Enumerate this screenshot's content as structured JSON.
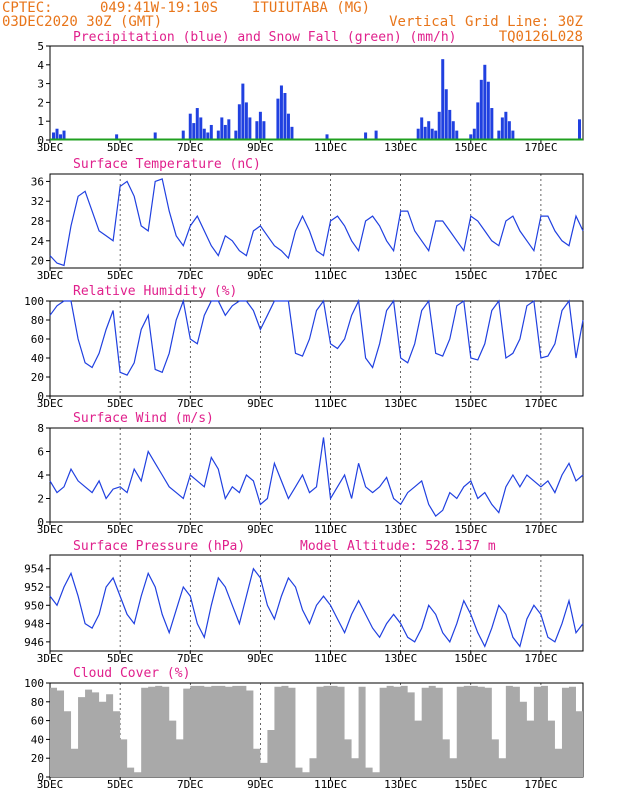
{
  "header": {
    "source": "CPTEC:",
    "coords": "049:41W-19:10S",
    "station": "ITUIUTABA (MG)",
    "init": "03DEC2020 30Z (GMT)",
    "grid_note": "Vertical Grid Line: 30Z",
    "code": "TQ0126L028"
  },
  "colors": {
    "header": "#e8751a",
    "title": "#e0208c",
    "line": "#2040e0",
    "snow": "#20a020",
    "cloud": "#a9a9a9"
  },
  "x_axis": {
    "ticks": [
      "3DEC",
      "5DEC",
      "7DEC",
      "9DEC",
      "11DEC",
      "13DEC",
      "15DEC",
      "17DEC"
    ],
    "tick_days": [
      0,
      2,
      4,
      6,
      8,
      10,
      12,
      14
    ],
    "range_days": [
      0,
      15.2
    ]
  },
  "chart_data": [
    {
      "id": "precip",
      "type": "bar",
      "title": "Precipitation (blue) and Snow Fall (green) (mm/h)",
      "ylim": [
        0,
        5
      ],
      "yticks": [
        "0",
        "1",
        "2",
        "3",
        "4",
        "5"
      ],
      "series": [
        {
          "name": "Precipitation",
          "x": [
            0.1,
            0.2,
            0.3,
            0.4,
            1.9,
            3.0,
            3.8,
            4.0,
            4.1,
            4.2,
            4.3,
            4.4,
            4.5,
            4.6,
            4.8,
            4.9,
            5.0,
            5.1,
            5.3,
            5.4,
            5.5,
            5.6,
            5.7,
            5.9,
            6.0,
            6.1,
            6.5,
            6.6,
            6.7,
            6.8,
            6.9,
            7.9,
            9.0,
            9.3,
            10.5,
            10.6,
            10.7,
            10.8,
            10.9,
            11.0,
            11.1,
            11.2,
            11.3,
            11.4,
            11.5,
            11.6,
            12.0,
            12.1,
            12.2,
            12.3,
            12.4,
            12.5,
            12.6,
            12.8,
            12.9,
            13.0,
            13.1,
            13.2,
            15.1
          ],
          "values": [
            0.4,
            0.6,
            0.3,
            0.5,
            0.3,
            0.4,
            0.5,
            1.4,
            0.9,
            1.7,
            1.2,
            0.6,
            0.4,
            0.8,
            0.5,
            1.2,
            0.8,
            1.1,
            0.5,
            1.9,
            3.0,
            2.0,
            1.2,
            1.0,
            1.5,
            1.0,
            2.2,
            2.9,
            2.5,
            1.4,
            0.7,
            0.3,
            0.4,
            0.5,
            0.6,
            1.2,
            0.7,
            1.0,
            0.6,
            0.5,
            1.5,
            4.3,
            2.7,
            1.6,
            1.0,
            0.5,
            0.3,
            0.6,
            2.0,
            3.2,
            4.0,
            3.1,
            1.7,
            0.5,
            1.2,
            1.5,
            1.0,
            0.5,
            1.1
          ]
        },
        {
          "name": "Snow Fall",
          "x": [
            0,
            15.2
          ],
          "values": [
            0,
            0
          ]
        }
      ]
    },
    {
      "id": "temp",
      "type": "line",
      "title": "Surface Temperature (nC)",
      "ylim": [
        18.5,
        37.5
      ],
      "yticks": [
        "20",
        "24",
        "28",
        "32",
        "36"
      ],
      "ytick_vals": [
        20,
        24,
        28,
        32,
        36
      ],
      "x": [
        0,
        0.2,
        0.4,
        0.6,
        0.8,
        1.0,
        1.2,
        1.4,
        1.6,
        1.8,
        2.0,
        2.2,
        2.4,
        2.6,
        2.8,
        3.0,
        3.2,
        3.4,
        3.6,
        3.8,
        4.0,
        4.2,
        4.4,
        4.6,
        4.8,
        5.0,
        5.2,
        5.4,
        5.6,
        5.8,
        6.0,
        6.2,
        6.4,
        6.6,
        6.8,
        7.0,
        7.2,
        7.4,
        7.6,
        7.8,
        8.0,
        8.2,
        8.4,
        8.6,
        8.8,
        9.0,
        9.2,
        9.4,
        9.6,
        9.8,
        10.0,
        10.2,
        10.4,
        10.6,
        10.8,
        11.0,
        11.2,
        11.4,
        11.6,
        11.8,
        12.0,
        12.2,
        12.4,
        12.6,
        12.8,
        13.0,
        13.2,
        13.4,
        13.6,
        13.8,
        14.0,
        14.2,
        14.4,
        14.6,
        14.8,
        15.0,
        15.2
      ],
      "values": [
        21,
        19.5,
        19,
        27,
        33,
        34,
        30,
        26,
        25,
        24,
        35,
        36,
        33,
        27,
        26,
        36,
        36.5,
        30,
        25,
        23,
        27,
        29,
        26,
        23,
        21,
        25,
        24,
        22,
        21,
        26,
        27,
        25,
        23,
        22,
        20.5,
        26,
        29,
        26,
        22,
        21,
        28,
        29,
        27,
        24,
        22,
        28,
        29,
        27,
        24,
        22,
        30,
        30,
        26,
        24,
        22,
        28,
        28,
        26,
        24,
        22,
        29,
        28,
        26,
        24,
        23,
        28,
        29,
        26,
        24,
        22,
        29,
        29,
        26,
        24,
        23,
        29,
        26
      ]
    },
    {
      "id": "rh",
      "type": "line",
      "title": "Relative Humidity (%)",
      "ylim": [
        0,
        100
      ],
      "yticks": [
        "0",
        "20",
        "40",
        "60",
        "80",
        "100"
      ],
      "ytick_vals": [
        0,
        20,
        40,
        60,
        80,
        100
      ],
      "x": [
        0,
        0.2,
        0.4,
        0.6,
        0.8,
        1.0,
        1.2,
        1.4,
        1.6,
        1.8,
        2.0,
        2.2,
        2.4,
        2.6,
        2.8,
        3.0,
        3.2,
        3.4,
        3.6,
        3.8,
        4.0,
        4.2,
        4.4,
        4.6,
        4.8,
        5.0,
        5.2,
        5.4,
        5.6,
        5.8,
        6.0,
        6.2,
        6.4,
        6.6,
        6.8,
        7.0,
        7.2,
        7.4,
        7.6,
        7.8,
        8.0,
        8.2,
        8.4,
        8.6,
        8.8,
        9.0,
        9.2,
        9.4,
        9.6,
        9.8,
        10.0,
        10.2,
        10.4,
        10.6,
        10.8,
        11.0,
        11.2,
        11.4,
        11.6,
        11.8,
        12.0,
        12.2,
        12.4,
        12.6,
        12.8,
        13.0,
        13.2,
        13.4,
        13.6,
        13.8,
        14.0,
        14.2,
        14.4,
        14.6,
        14.8,
        15.0,
        15.2
      ],
      "values": [
        85,
        95,
        100,
        100,
        60,
        35,
        30,
        45,
        70,
        90,
        25,
        22,
        35,
        70,
        85,
        28,
        25,
        45,
        80,
        100,
        60,
        55,
        85,
        100,
        100,
        85,
        95,
        100,
        100,
        90,
        70,
        85,
        100,
        100,
        100,
        45,
        42,
        60,
        90,
        100,
        55,
        50,
        60,
        85,
        100,
        40,
        30,
        55,
        90,
        100,
        40,
        35,
        55,
        90,
        100,
        45,
        42,
        60,
        95,
        100,
        40,
        38,
        55,
        90,
        100,
        40,
        45,
        60,
        95,
        100,
        40,
        42,
        55,
        90,
        100,
        40,
        80
      ]
    },
    {
      "id": "wind",
      "type": "line",
      "title": "Surface Wind (m/s)",
      "ylim": [
        0,
        8
      ],
      "yticks": [
        "0",
        "2",
        "4",
        "6",
        "8"
      ],
      "ytick_vals": [
        0,
        2,
        4,
        6,
        8
      ],
      "x": [
        0,
        0.2,
        0.4,
        0.6,
        0.8,
        1.0,
        1.2,
        1.4,
        1.6,
        1.8,
        2.0,
        2.2,
        2.4,
        2.6,
        2.8,
        3.0,
        3.2,
        3.4,
        3.6,
        3.8,
        4.0,
        4.2,
        4.4,
        4.6,
        4.8,
        5.0,
        5.2,
        5.4,
        5.6,
        5.8,
        6.0,
        6.2,
        6.4,
        6.6,
        6.8,
        7.0,
        7.2,
        7.4,
        7.6,
        7.8,
        8.0,
        8.2,
        8.4,
        8.6,
        8.8,
        9.0,
        9.2,
        9.4,
        9.6,
        9.8,
        10.0,
        10.2,
        10.4,
        10.6,
        10.8,
        11.0,
        11.2,
        11.4,
        11.6,
        11.8,
        12.0,
        12.2,
        12.4,
        12.6,
        12.8,
        13.0,
        13.2,
        13.4,
        13.6,
        13.8,
        14.0,
        14.2,
        14.4,
        14.6,
        14.8,
        15.0,
        15.2
      ],
      "values": [
        3.5,
        2.5,
        3.0,
        4.5,
        3.5,
        3.0,
        2.5,
        3.5,
        2.0,
        2.8,
        3.0,
        2.5,
        4.5,
        3.5,
        6.0,
        5.0,
        4.0,
        3.0,
        2.5,
        2.0,
        4.0,
        3.5,
        3.0,
        5.5,
        4.5,
        2.0,
        3.0,
        2.5,
        4.0,
        3.5,
        1.5,
        2.0,
        5.0,
        3.5,
        2.0,
        3.0,
        4.0,
        2.5,
        3.0,
        7.2,
        2.0,
        3.0,
        4.0,
        2.0,
        5.0,
        3.0,
        2.5,
        3.0,
        3.8,
        2.0,
        1.5,
        2.5,
        3.0,
        3.5,
        1.5,
        0.5,
        1.0,
        2.5,
        2.0,
        3.0,
        3.5,
        2.0,
        2.5,
        1.5,
        0.8,
        3.0,
        4.0,
        3.0,
        4.0,
        3.5,
        3.0,
        3.5,
        2.5,
        4.0,
        5.0,
        3.5,
        4.0
      ]
    },
    {
      "id": "pres",
      "type": "line",
      "title": "Surface Pressure (hPa)",
      "extra_label": "Model Altitude: 528.137 m",
      "ylim": [
        945,
        955.5
      ],
      "yticks": [
        "946",
        "948",
        "950",
        "952",
        "954"
      ],
      "ytick_vals": [
        946,
        948,
        950,
        952,
        954
      ],
      "x": [
        0,
        0.2,
        0.4,
        0.6,
        0.8,
        1.0,
        1.2,
        1.4,
        1.6,
        1.8,
        2.0,
        2.2,
        2.4,
        2.6,
        2.8,
        3.0,
        3.2,
        3.4,
        3.6,
        3.8,
        4.0,
        4.2,
        4.4,
        4.6,
        4.8,
        5.0,
        5.2,
        5.4,
        5.6,
        5.8,
        6.0,
        6.2,
        6.4,
        6.6,
        6.8,
        7.0,
        7.2,
        7.4,
        7.6,
        7.8,
        8.0,
        8.2,
        8.4,
        8.6,
        8.8,
        9.0,
        9.2,
        9.4,
        9.6,
        9.8,
        10.0,
        10.2,
        10.4,
        10.6,
        10.8,
        11.0,
        11.2,
        11.4,
        11.6,
        11.8,
        12.0,
        12.2,
        12.4,
        12.6,
        12.8,
        13.0,
        13.2,
        13.4,
        13.6,
        13.8,
        14.0,
        14.2,
        14.4,
        14.6,
        14.8,
        15.0,
        15.2
      ],
      "values": [
        951,
        950,
        952,
        953.5,
        951,
        948,
        947.5,
        949,
        952,
        953,
        951,
        949,
        948,
        951,
        953.5,
        952,
        949,
        947,
        949.5,
        952,
        951,
        948,
        946.5,
        950,
        953,
        952,
        950,
        948,
        951,
        954,
        953,
        950,
        948.5,
        951,
        953,
        952,
        949.5,
        948,
        950,
        951,
        950,
        948.5,
        947,
        949,
        950.5,
        949,
        947.5,
        946.5,
        948,
        949,
        948,
        946.5,
        946,
        947.5,
        950,
        949,
        947,
        946,
        948,
        950.5,
        949,
        947,
        945.5,
        947.5,
        950,
        949,
        946.5,
        945.5,
        948.5,
        950,
        949,
        946.5,
        946,
        948,
        950.5,
        947,
        948
      ]
    },
    {
      "id": "cloud",
      "type": "area",
      "title": "Cloud Cover (%)",
      "ylim": [
        0,
        100
      ],
      "yticks": [
        "0",
        "20",
        "40",
        "60",
        "80",
        "100"
      ],
      "ytick_vals": [
        0,
        20,
        40,
        60,
        80,
        100
      ],
      "x": [
        0,
        0.2,
        0.4,
        0.6,
        0.8,
        1.0,
        1.2,
        1.4,
        1.6,
        1.8,
        2.0,
        2.2,
        2.4,
        2.6,
        2.8,
        3.0,
        3.2,
        3.4,
        3.6,
        3.8,
        4.0,
        4.2,
        4.4,
        4.6,
        4.8,
        5.0,
        5.2,
        5.4,
        5.6,
        5.8,
        6.0,
        6.2,
        6.4,
        6.6,
        6.8,
        7.0,
        7.2,
        7.4,
        7.6,
        7.8,
        8.0,
        8.2,
        8.4,
        8.6,
        8.8,
        9.0,
        9.2,
        9.4,
        9.6,
        9.8,
        10.0,
        10.2,
        10.4,
        10.6,
        10.8,
        11.0,
        11.2,
        11.4,
        11.6,
        11.8,
        12.0,
        12.2,
        12.4,
        12.6,
        12.8,
        13.0,
        13.2,
        13.4,
        13.6,
        13.8,
        14.0,
        14.2,
        14.4,
        14.6,
        14.8,
        15.0,
        15.2
      ],
      "values": [
        95,
        92,
        70,
        30,
        85,
        93,
        90,
        80,
        88,
        70,
        40,
        10,
        5,
        95,
        96,
        97,
        96,
        60,
        40,
        94,
        97,
        97,
        96,
        97,
        97,
        96,
        97,
        97,
        92,
        30,
        15,
        50,
        96,
        97,
        95,
        10,
        5,
        20,
        96,
        97,
        97,
        96,
        40,
        20,
        96,
        10,
        5,
        95,
        97,
        96,
        97,
        90,
        60,
        95,
        97,
        95,
        40,
        20,
        96,
        97,
        97,
        96,
        95,
        40,
        20,
        97,
        96,
        80,
        60,
        96,
        97,
        60,
        30,
        95,
        96,
        70,
        97
      ]
    }
  ]
}
